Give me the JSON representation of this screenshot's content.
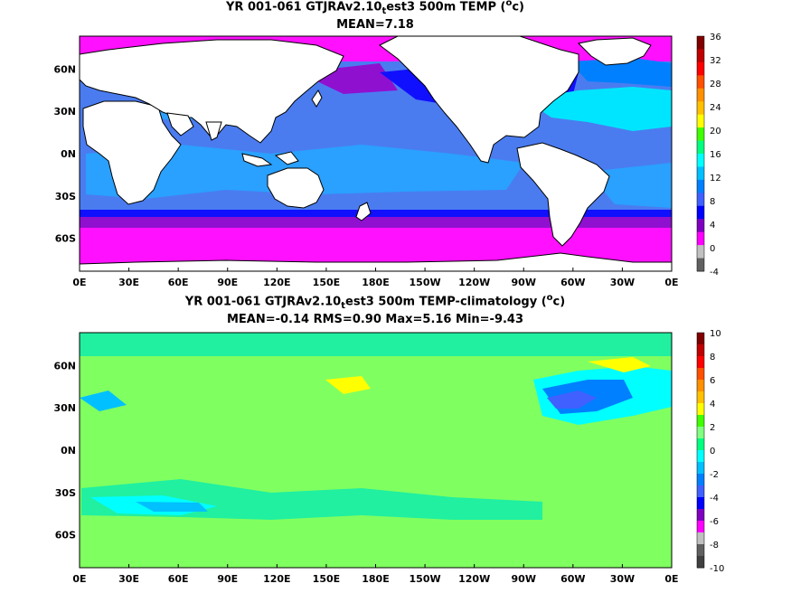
{
  "panels": [
    {
      "title_pre": "YR 001-061 GTJRAv2.10",
      "title_sub": "t",
      "title_post": "est3 500m TEMP (",
      "title_sup": "o",
      "title_end": "c)",
      "stats": "MEAN=7.18",
      "colorbar": {
        "labels": [
          "36",
          "32",
          "28",
          "24",
          "20",
          "16",
          "12",
          "8",
          "4",
          "0",
          "-4"
        ],
        "colors": [
          "#800000",
          "#c00000",
          "#ff0000",
          "#ff5000",
          "#ff9000",
          "#ffc000",
          "#ffff00",
          "#40ff00",
          "#00ff80",
          "#00ffff",
          "#00c0ff",
          "#0080ff",
          "#4060ff",
          "#0000ff",
          "#8000c0",
          "#ff00ff",
          "#c0c0c0",
          "#606060"
        ]
      }
    },
    {
      "title_pre": "YR 001-061 GTJRAv2.10",
      "title_sub": "t",
      "title_post": "est3 500m TEMP-climatology (",
      "title_sup": "o",
      "title_end": "c)",
      "stats": "MEAN=-0.14   RMS=0.90   Max=5.16   Min=-9.43",
      "colorbar": {
        "labels": [
          "10",
          "8",
          "6",
          "4",
          "2",
          "0",
          "-2",
          "-4",
          "-6",
          "-8",
          "-10"
        ],
        "colors": [
          "#800000",
          "#c00000",
          "#ff0000",
          "#ff5000",
          "#ff9000",
          "#ffc000",
          "#ffff00",
          "#40ff00",
          "#80ff80",
          "#00ff80",
          "#00ffff",
          "#00c0ff",
          "#0080ff",
          "#4060ff",
          "#0000ff",
          "#8000c0",
          "#ff00ff",
          "#c0c0c0",
          "#606060",
          "#404040"
        ]
      }
    }
  ],
  "axes": {
    "lon_labels": [
      "0E",
      "30E",
      "60E",
      "90E",
      "120E",
      "150E",
      "180E",
      "150W",
      "120W",
      "90W",
      "60W",
      "30W",
      "0E"
    ],
    "lat_labels": [
      "60N",
      "30N",
      "0N",
      "30S",
      "60S"
    ]
  },
  "colors": {
    "land": "#ffffff",
    "coast": "#000000",
    "warm": "#4a7cf0",
    "mid": "#2aa0ff",
    "cyan": "#00e5ff",
    "blue": "#1010ff",
    "purple": "#9010d0",
    "magenta": "#ff10ff",
    "green": "#80ff60",
    "seagreen": "#20f0a0"
  }
}
